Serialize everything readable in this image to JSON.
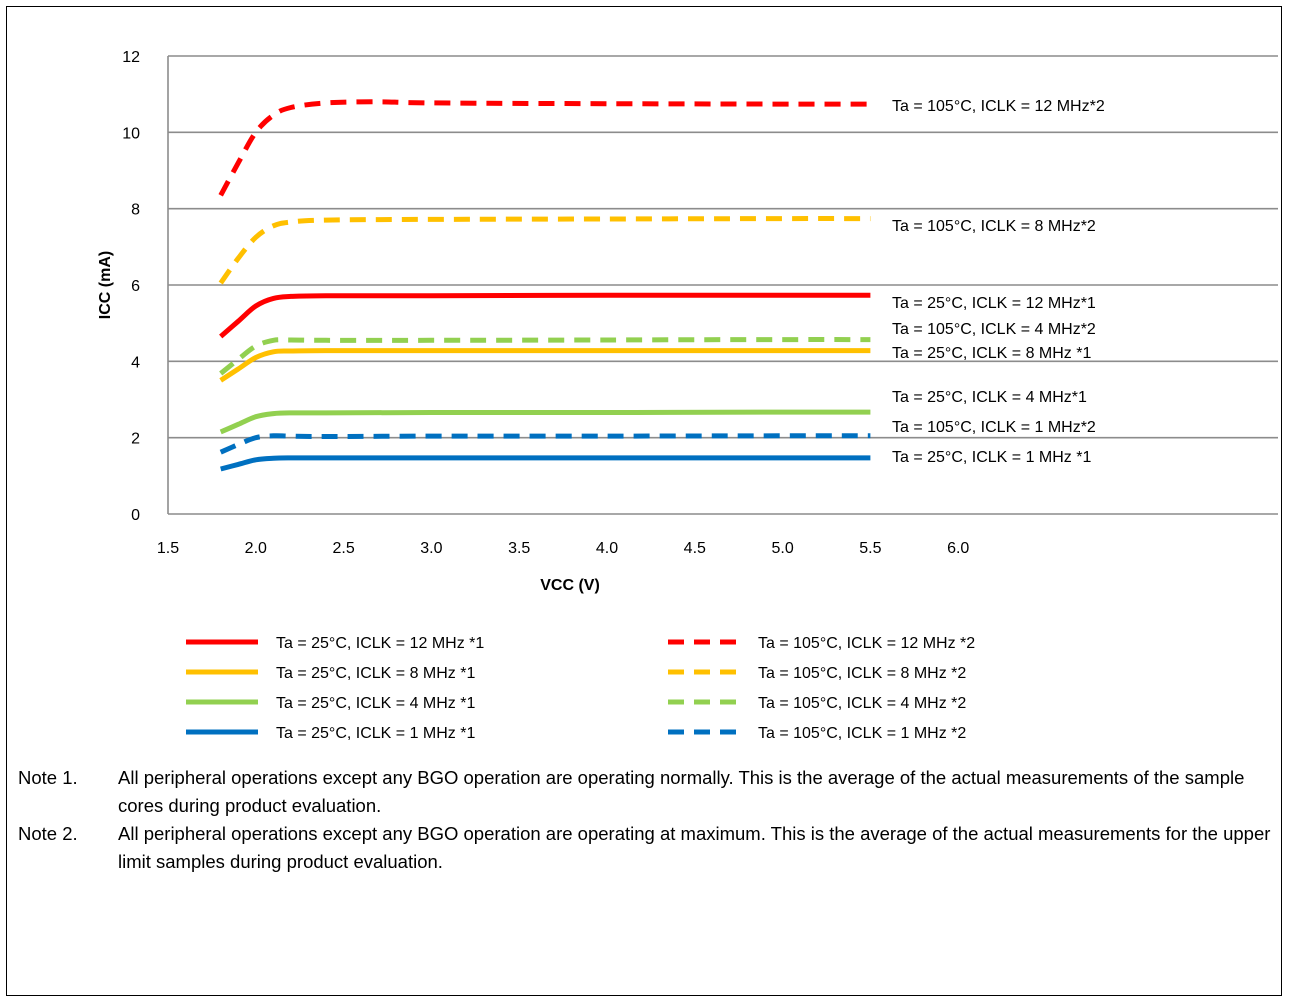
{
  "chart_data": {
    "type": "line",
    "xlabel": "VCC   (V)",
    "ylabel": "ICC   (mA)",
    "xlim": [
      1.5,
      6.0
    ],
    "ylim": [
      0,
      12
    ],
    "x_ticks": [
      "1.5",
      "2.0",
      "2.5",
      "3.0",
      "3.5",
      "4.0",
      "4.5",
      "5.0",
      "5.5",
      "6.0"
    ],
    "y_ticks": [
      "0",
      "2",
      "4",
      "6",
      "8",
      "10",
      "12"
    ],
    "grid": "horizontal",
    "legend_placement": "bottom",
    "series": [
      {
        "name": "Ta = 25°C, ICLK = 12 MHz *1",
        "color": "#ff0000",
        "style": "solid",
        "x": [
          1.8,
          1.9,
          2.0,
          2.1,
          2.2,
          2.4,
          3.0,
          4.0,
          5.0,
          5.5
        ],
        "y": [
          4.65,
          5.05,
          5.45,
          5.65,
          5.7,
          5.72,
          5.72,
          5.73,
          5.73,
          5.73
        ]
      },
      {
        "name": "Ta = 25°C, ICLK = 8 MHz *1",
        "color": "#ffc000",
        "style": "solid",
        "x": [
          1.8,
          1.9,
          2.0,
          2.1,
          2.2,
          2.4,
          3.0,
          4.0,
          5.0,
          5.5
        ],
        "y": [
          3.5,
          3.8,
          4.1,
          4.25,
          4.27,
          4.28,
          4.28,
          4.28,
          4.28,
          4.28
        ]
      },
      {
        "name": "Ta = 25°C, ICLK = 4 MHz *1",
        "color": "#92d050",
        "style": "solid",
        "x": [
          1.8,
          1.9,
          2.0,
          2.1,
          2.2,
          2.4,
          3.0,
          4.0,
          5.0,
          5.5
        ],
        "y": [
          2.15,
          2.35,
          2.55,
          2.63,
          2.65,
          2.65,
          2.66,
          2.66,
          2.67,
          2.67
        ]
      },
      {
        "name": "Ta = 25°C, ICLK = 1 MHz *1",
        "color": "#0070c0",
        "style": "solid",
        "x": [
          1.8,
          1.9,
          2.0,
          2.1,
          2.2,
          2.4,
          3.0,
          4.0,
          5.0,
          5.5
        ],
        "y": [
          1.18,
          1.3,
          1.42,
          1.46,
          1.47,
          1.47,
          1.47,
          1.47,
          1.47,
          1.47
        ]
      },
      {
        "name": "Ta = 105°C, ICLK = 12 MHz *2",
        "color": "#ff0000",
        "style": "dashed",
        "x": [
          1.8,
          1.9,
          2.0,
          2.1,
          2.2,
          2.4,
          2.7,
          3.0,
          4.0,
          5.0,
          5.5
        ],
        "y": [
          8.35,
          9.2,
          10.0,
          10.45,
          10.65,
          10.77,
          10.8,
          10.77,
          10.75,
          10.74,
          10.74
        ]
      },
      {
        "name": "Ta = 105°C, ICLK = 8 MHz *2",
        "color": "#ffc000",
        "style": "dashed",
        "x": [
          1.8,
          1.9,
          2.0,
          2.1,
          2.2,
          2.4,
          3.0,
          4.0,
          5.0,
          5.5
        ],
        "y": [
          6.05,
          6.7,
          7.25,
          7.55,
          7.65,
          7.7,
          7.72,
          7.73,
          7.74,
          7.74
        ]
      },
      {
        "name": "Ta = 105°C, ICLK = 4 MHz *2",
        "color": "#92d050",
        "style": "dashed",
        "x": [
          1.8,
          1.9,
          2.0,
          2.1,
          2.2,
          2.4,
          3.0,
          4.0,
          5.0,
          5.5
        ],
        "y": [
          3.68,
          4.05,
          4.4,
          4.55,
          4.56,
          4.55,
          4.55,
          4.56,
          4.57,
          4.57
        ]
      },
      {
        "name": "Ta = 105°C, ICLK = 1 MHz *2",
        "color": "#0070c0",
        "style": "dashed",
        "x": [
          1.8,
          1.9,
          2.0,
          2.1,
          2.2,
          2.4,
          3.0,
          4.0,
          5.0,
          5.5
        ],
        "y": [
          1.62,
          1.82,
          2.0,
          2.05,
          2.04,
          2.03,
          2.04,
          2.04,
          2.05,
          2.05
        ]
      }
    ],
    "annotations": [
      {
        "text": "Ta = 105°C, ICLK = 12 MHz*2",
        "series": 4
      },
      {
        "text": "Ta = 105°C, ICLK = 8 MHz*2",
        "series": 5
      },
      {
        "text": "Ta = 25°C, ICLK = 12 MHz*1",
        "series": 0
      },
      {
        "text": "Ta = 105°C, ICLK = 4 MHz*2",
        "series": 6
      },
      {
        "text": "Ta = 25°C, ICLK = 8 MHz  *1",
        "series": 1
      },
      {
        "text": "Ta = 25°C, ICLK = 4 MHz*1",
        "series": 2
      },
      {
        "text": "Ta = 105°C, ICLK = 1 MHz*2",
        "series": 7
      },
      {
        "text": "Ta = 25°C, ICLK = 1 MHz *1",
        "series": 3
      }
    ]
  },
  "notes": [
    {
      "label": "Note 1.",
      "text": "All peripheral operations except any BGO operation are operating normally. This is the average of the actual measurements of the sample cores during product evaluation."
    },
    {
      "label": "Note 2.",
      "text": "All peripheral operations except any BGO operation are operating at maximum. This is the average of the actual measurements for the upper limit samples during product evaluation."
    }
  ]
}
